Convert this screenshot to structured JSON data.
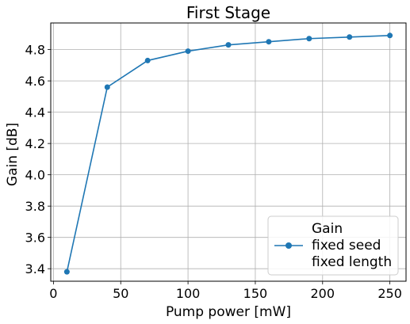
{
  "chart_data": {
    "type": "line",
    "title": "First Stage",
    "xlabel": "Pump power [mW]",
    "ylabel": "Gain [dB]",
    "xlim": [
      -2,
      262
    ],
    "ylim": [
      3.32,
      4.97
    ],
    "xticks": [
      0,
      50,
      100,
      150,
      200,
      250
    ],
    "yticks": [
      3.4,
      3.6,
      3.8,
      4.0,
      4.2,
      4.4,
      4.6,
      4.8
    ],
    "xtick_labels": [
      "0",
      "50",
      "100",
      "150",
      "200",
      "250"
    ],
    "ytick_labels": [
      "3.4",
      "3.6",
      "3.8",
      "4.0",
      "4.2",
      "4.4",
      "4.6",
      "4.8"
    ],
    "grid": true,
    "legend_position": "lower-right",
    "series": [
      {
        "name": "Gain\nfixed seed\nfixed length",
        "legend_lines": [
          "Gain",
          "fixed seed",
          "fixed length"
        ],
        "color": "#1f77b4",
        "marker": "circle",
        "x": [
          10,
          40,
          70,
          100,
          130,
          160,
          190,
          220,
          250
        ],
        "y": [
          3.38,
          4.56,
          4.73,
          4.79,
          4.83,
          4.85,
          4.87,
          4.88,
          4.89
        ]
      }
    ]
  }
}
